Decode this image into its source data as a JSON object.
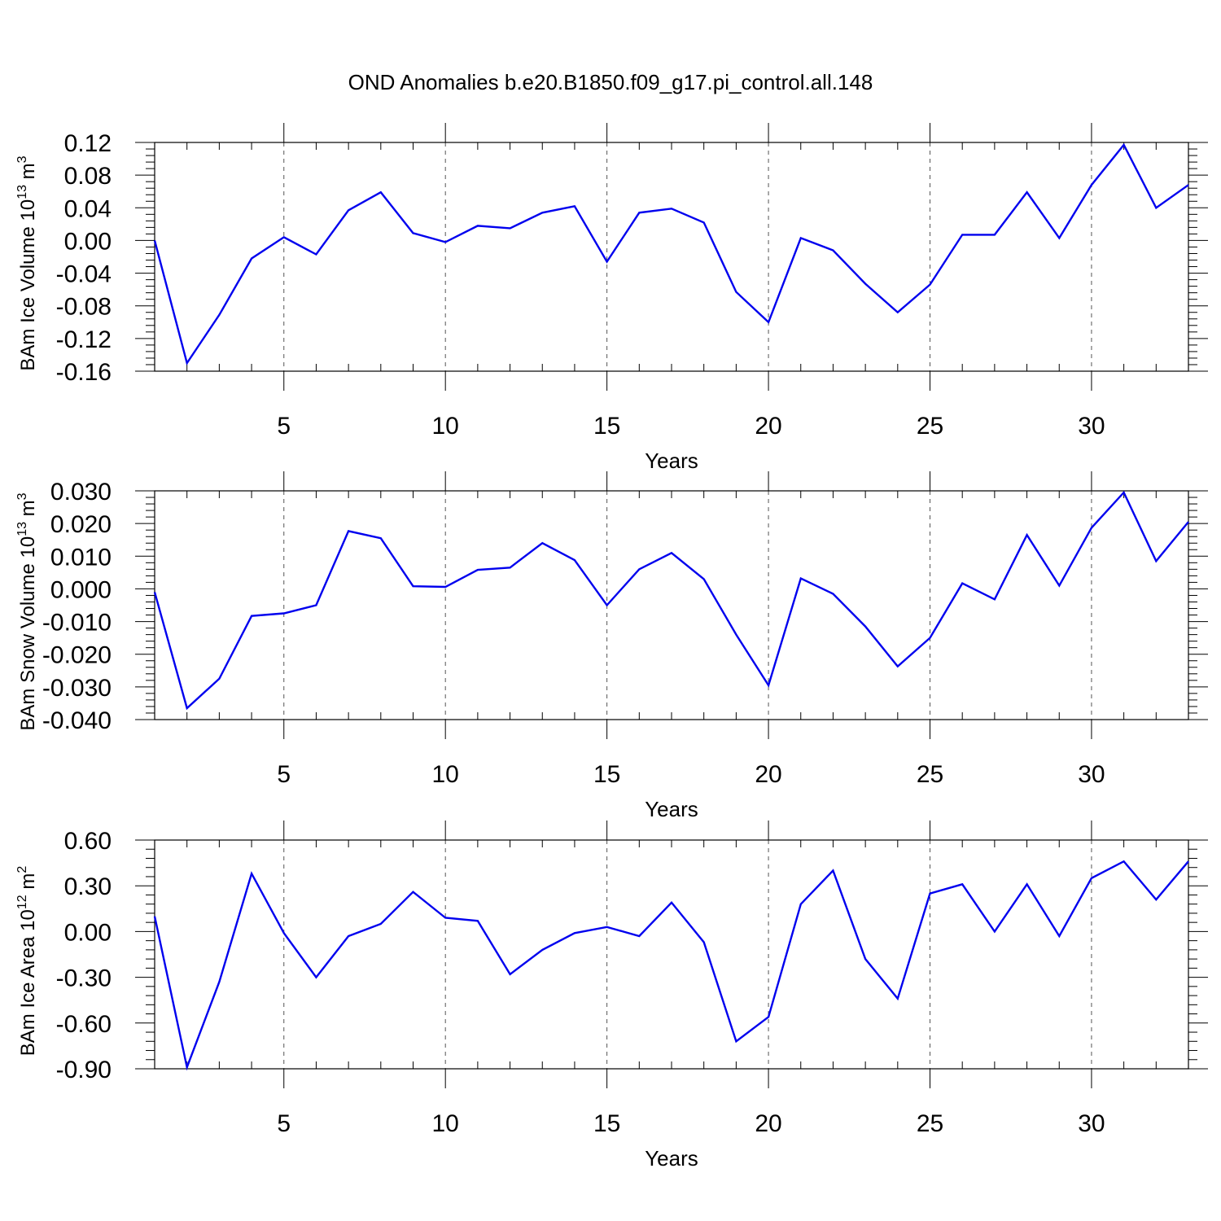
{
  "title": "OND Anomalies b.e20.B1850.f09_g17.pi_control.all.148",
  "line_color": "#0000ee",
  "chart_data": [
    {
      "type": "line",
      "ylabel": {
        "main": "BAm Ice Volume 10",
        "exp": "13",
        "unit": " m",
        "unit_exp": "3"
      },
      "xlabel": "Years",
      "xlim": [
        1,
        33
      ],
      "ylim": [
        -0.16,
        0.12
      ],
      "xticks": [
        5,
        10,
        15,
        20,
        25,
        30
      ],
      "xtick_labels": [
        "5",
        "10",
        "15",
        "20",
        "25",
        "30"
      ],
      "yticks": [
        -0.16,
        -0.12,
        -0.08,
        -0.04,
        0.0,
        0.04,
        0.08,
        0.12
      ],
      "ytick_labels": [
        "-0.16",
        "-0.12",
        "-0.08",
        "-0.04",
        "0.00",
        "0.04",
        "0.08",
        "0.12"
      ],
      "grid": "vertical dashed at major x ticks",
      "x": [
        1,
        2,
        3,
        4,
        5,
        6,
        7,
        8,
        9,
        10,
        11,
        12,
        13,
        14,
        15,
        16,
        17,
        18,
        19,
        20,
        21,
        22,
        23,
        24,
        25,
        26,
        27,
        28,
        29,
        30,
        31,
        32,
        33
      ],
      "values": [
        0.0,
        -0.15,
        -0.091,
        -0.022,
        0.004,
        -0.017,
        0.037,
        0.059,
        0.009,
        -0.002,
        0.018,
        0.015,
        0.034,
        0.042,
        -0.026,
        0.034,
        0.039,
        0.022,
        -0.063,
        -0.1,
        0.003,
        -0.012,
        -0.053,
        -0.088,
        -0.054,
        0.007,
        0.007,
        0.059,
        0.003,
        0.068,
        0.117,
        0.04,
        0.068
      ]
    },
    {
      "type": "line",
      "ylabel": {
        "main": "BAm Snow Volume 10",
        "exp": "13",
        "unit": " m",
        "unit_exp": "3"
      },
      "xlabel": "Years",
      "xlim": [
        1,
        33
      ],
      "ylim": [
        -0.04,
        0.03
      ],
      "xticks": [
        5,
        10,
        15,
        20,
        25,
        30
      ],
      "xtick_labels": [
        "5",
        "10",
        "15",
        "20",
        "25",
        "30"
      ],
      "yticks": [
        -0.04,
        -0.03,
        -0.02,
        -0.01,
        0.0,
        0.01,
        0.02,
        0.03
      ],
      "ytick_labels": [
        "-0.040",
        "-0.030",
        "-0.020",
        "-0.010",
        "0.000",
        "0.010",
        "0.020",
        "0.030"
      ],
      "grid": "vertical dashed at major x ticks",
      "x": [
        1,
        2,
        3,
        4,
        5,
        6,
        7,
        8,
        9,
        10,
        11,
        12,
        13,
        14,
        15,
        16,
        17,
        18,
        19,
        20,
        21,
        22,
        23,
        24,
        25,
        26,
        27,
        28,
        29,
        30,
        31,
        32,
        33
      ],
      "values": [
        -0.001,
        -0.0365,
        -0.0275,
        -0.0083,
        -0.0075,
        -0.005,
        0.0177,
        0.0155,
        0.0008,
        0.0006,
        0.0058,
        0.0065,
        0.014,
        0.0088,
        -0.005,
        0.006,
        0.011,
        0.003,
        -0.014,
        -0.0295,
        0.0032,
        -0.0015,
        -0.0115,
        -0.0237,
        -0.015,
        0.0017,
        -0.0032,
        0.0165,
        0.001,
        0.0187,
        0.0295,
        0.0085,
        0.0205
      ]
    },
    {
      "type": "line",
      "ylabel": {
        "main": "BAm Ice Area 10",
        "exp": "12",
        "unit": " m",
        "unit_exp": "2"
      },
      "xlabel": "Years",
      "xlim": [
        1,
        33
      ],
      "ylim": [
        -0.9,
        0.6
      ],
      "xticks": [
        5,
        10,
        15,
        20,
        25,
        30
      ],
      "xtick_labels": [
        "5",
        "10",
        "15",
        "20",
        "25",
        "30"
      ],
      "yticks": [
        -0.9,
        -0.6,
        -0.3,
        0.0,
        0.3,
        0.6
      ],
      "ytick_labels": [
        "-0.90",
        "-0.60",
        "-0.30",
        "0.00",
        "0.30",
        "0.60"
      ],
      "grid": "vertical dashed at major x ticks",
      "x": [
        1,
        2,
        3,
        4,
        5,
        6,
        7,
        8,
        9,
        10,
        11,
        12,
        13,
        14,
        15,
        16,
        17,
        18,
        19,
        20,
        21,
        22,
        23,
        24,
        25,
        26,
        27,
        28,
        29,
        30,
        31,
        32,
        33
      ],
      "values": [
        0.1,
        -0.89,
        -0.33,
        0.38,
        -0.01,
        -0.3,
        -0.03,
        0.05,
        0.26,
        0.09,
        0.07,
        -0.28,
        -0.12,
        -0.01,
        0.03,
        -0.03,
        0.19,
        -0.07,
        -0.72,
        -0.56,
        0.18,
        0.4,
        -0.18,
        -0.44,
        0.25,
        0.31,
        0.0,
        0.31,
        -0.03,
        0.35,
        0.46,
        0.21,
        0.46
      ]
    }
  ]
}
